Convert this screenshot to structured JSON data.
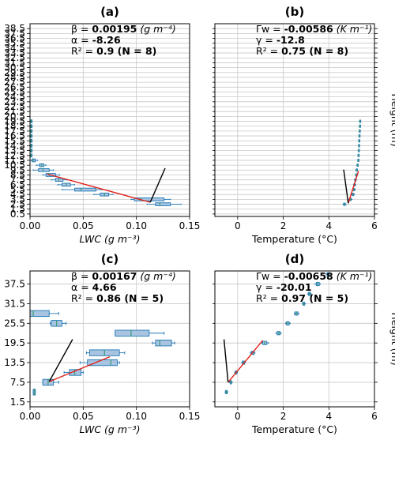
{
  "chart_data": [
    {
      "id": "a",
      "type": "box",
      "title": "(a)",
      "xlabel": "LWC (g m⁻³)",
      "ylabel": "",
      "xlim": [
        0,
        0.15
      ],
      "ylim": [
        0,
        39.5
      ],
      "xticks": [
        0.0,
        0.05,
        0.1,
        0.15
      ],
      "xtick_labels": [
        "0.00",
        "0.05",
        "0.10",
        "0.15"
      ],
      "yticks": [
        0.5,
        1.5,
        2.5,
        3.5,
        4.5,
        5.5,
        6.5,
        7.5,
        8.5,
        9.5,
        10.5,
        11.5,
        12.5,
        13.5,
        14.5,
        15.5,
        16.5,
        17.5,
        18.5,
        19.5,
        20.5,
        21.5,
        22.5,
        23.5,
        24.5,
        25.5,
        26.5,
        27.5,
        28.5,
        29.5,
        30.5,
        31.5,
        32.5,
        33.5,
        34.5,
        35.5,
        36.5,
        37.5,
        38.5
      ],
      "ytick_labels": [
        "0.5",
        "1.5",
        "2.5",
        "3.5",
        "4.5",
        "5.5",
        "6.5",
        "7.5",
        "8.5",
        "9.5",
        "10.5",
        "11.5",
        "12.5",
        "13.5",
        "14.5",
        "15.5",
        "16.5",
        "17.5",
        "18.5",
        "19.5",
        "20.5",
        "21.5",
        "22.5",
        "23.5",
        "24.5",
        "25.5",
        "26.5",
        "27.5",
        "28.5",
        "29.5",
        "30.5",
        "31.5",
        "32.5",
        "33.5",
        "34.5",
        "35.5",
        "36.5",
        "37.5",
        "38.5"
      ],
      "ytick_side": "left",
      "grid": true,
      "box_height": 0.6,
      "boxes": [
        {
          "y": 2.5,
          "wl": 0.11,
          "q1": 0.118,
          "med": 0.122,
          "q3": 0.132,
          "wh": 0.142
        },
        {
          "y": 3.5,
          "wl": 0.095,
          "q1": 0.098,
          "med": 0.104,
          "q3": 0.126,
          "wh": 0.132
        },
        {
          "y": 4.5,
          "wl": 0.06,
          "q1": 0.066,
          "med": 0.07,
          "q3": 0.074,
          "wh": 0.078
        },
        {
          "y": 5.5,
          "wl": 0.03,
          "q1": 0.042,
          "med": 0.048,
          "q3": 0.062,
          "wh": 0.068
        },
        {
          "y": 6.5,
          "wl": 0.026,
          "q1": 0.03,
          "med": 0.034,
          "q3": 0.038,
          "wh": 0.042
        },
        {
          "y": 7.5,
          "wl": 0.02,
          "q1": 0.024,
          "med": 0.027,
          "q3": 0.031,
          "wh": 0.035
        },
        {
          "y": 8.5,
          "wl": 0.012,
          "q1": 0.015,
          "med": 0.018,
          "q3": 0.024,
          "wh": 0.028
        },
        {
          "y": 9.5,
          "wl": 0.003,
          "q1": 0.008,
          "med": 0.012,
          "q3": 0.018,
          "wh": 0.022
        },
        {
          "y": 10.5,
          "wl": 0.006,
          "q1": 0.009,
          "med": 0.011,
          "q3": 0.013,
          "wh": 0.015
        },
        {
          "y": 11.5,
          "wl": 0.001,
          "q1": 0.002,
          "med": 0.003,
          "q3": 0.005,
          "wh": 0.007
        },
        {
          "y": 12.5,
          "wl": 0.0005,
          "q1": 0.0008,
          "med": 0.001,
          "q3": 0.0015,
          "wh": 0.002
        },
        {
          "y": 13.5,
          "wl": 0.0005,
          "q1": 0.0008,
          "med": 0.001,
          "q3": 0.0015,
          "wh": 0.002
        },
        {
          "y": 14.5,
          "wl": 0.0005,
          "q1": 0.0008,
          "med": 0.001,
          "q3": 0.0015,
          "wh": 0.002
        },
        {
          "y": 15.5,
          "wl": 0.0005,
          "q1": 0.0008,
          "med": 0.001,
          "q3": 0.0015,
          "wh": 0.002
        },
        {
          "y": 16.5,
          "wl": 0.0005,
          "q1": 0.0008,
          "med": 0.001,
          "q3": 0.0015,
          "wh": 0.002
        },
        {
          "y": 17.5,
          "wl": 0.0005,
          "q1": 0.0008,
          "med": 0.001,
          "q3": 0.0015,
          "wh": 0.002
        },
        {
          "y": 18.5,
          "wl": 0.0005,
          "q1": 0.0008,
          "med": 0.001,
          "q3": 0.0015,
          "wh": 0.002
        },
        {
          "y": 19.5,
          "wl": 0.0005,
          "q1": 0.0008,
          "med": 0.001,
          "q3": 0.0015,
          "wh": 0.002
        }
      ],
      "fit_line": [
        [
          0.016,
          8.7
        ],
        [
          0.113,
          2.9
        ]
      ],
      "ref_line": [
        [
          0.113,
          2.9
        ],
        [
          0.127,
          9.9
        ]
      ],
      "annotations": [
        {
          "prefix": "β = ",
          "value": "0.00195",
          "unit": " (g m⁻⁴)"
        },
        {
          "prefix": "α = ",
          "value": "-8.26",
          "unit": ""
        },
        {
          "prefix": "R² = ",
          "value": "0.9 (N = 8)",
          "unit": ""
        }
      ]
    },
    {
      "id": "b",
      "type": "box",
      "title": "(b)",
      "xlabel": "Temperature (°C)",
      "ylabel": "Height (m)",
      "xlim": [
        -1,
        6
      ],
      "ylim": [
        0,
        39.5
      ],
      "xticks": [
        0,
        2,
        4,
        6
      ],
      "xtick_labels": [
        "0",
        "2",
        "4",
        "6"
      ],
      "yticks": [
        0.5,
        1.5,
        2.5,
        3.5,
        4.5,
        5.5,
        6.5,
        7.5,
        8.5,
        9.5,
        10.5,
        11.5,
        12.5,
        13.5,
        14.5,
        15.5,
        16.5,
        17.5,
        18.5,
        19.5,
        20.5,
        21.5,
        22.5,
        23.5,
        24.5,
        25.5,
        26.5,
        27.5,
        28.5,
        29.5,
        30.5,
        31.5,
        32.5,
        33.5,
        34.5,
        35.5,
        36.5,
        37.5,
        38.5
      ],
      "ytick_labels": [],
      "ytick_side": "right",
      "grid": true,
      "box_height": 0.5,
      "boxes": [
        {
          "y": 2.5,
          "wl": 4.62,
          "q1": 4.65,
          "med": 4.68,
          "q3": 4.72,
          "wh": 4.76
        },
        {
          "y": 3.5,
          "wl": 4.88,
          "q1": 4.92,
          "med": 4.95,
          "q3": 4.98,
          "wh": 5.02
        },
        {
          "y": 4.5,
          "wl": 5.0,
          "q1": 5.03,
          "med": 5.06,
          "q3": 5.09,
          "wh": 5.12
        },
        {
          "y": 5.5,
          "wl": 5.05,
          "q1": 5.08,
          "med": 5.1,
          "q3": 5.13,
          "wh": 5.16
        },
        {
          "y": 6.5,
          "wl": 5.08,
          "q1": 5.1,
          "med": 5.12,
          "q3": 5.15,
          "wh": 5.18
        },
        {
          "y": 7.5,
          "wl": 5.12,
          "q1": 5.14,
          "med": 5.16,
          "q3": 5.18,
          "wh": 5.21
        },
        {
          "y": 8.5,
          "wl": 5.16,
          "q1": 5.18,
          "med": 5.2,
          "q3": 5.22,
          "wh": 5.24
        },
        {
          "y": 9.5,
          "wl": 5.18,
          "q1": 5.2,
          "med": 5.22,
          "q3": 5.24,
          "wh": 5.26
        },
        {
          "y": 10.5,
          "wl": 5.22,
          "q1": 5.24,
          "med": 5.25,
          "q3": 5.27,
          "wh": 5.29
        },
        {
          "y": 11.5,
          "wl": 5.26,
          "q1": 5.27,
          "med": 5.28,
          "q3": 5.29,
          "wh": 5.31
        },
        {
          "y": 12.5,
          "wl": 5.27,
          "q1": 5.28,
          "med": 5.29,
          "q3": 5.3,
          "wh": 5.32
        },
        {
          "y": 13.5,
          "wl": 5.28,
          "q1": 5.29,
          "med": 5.3,
          "q3": 5.31,
          "wh": 5.33
        },
        {
          "y": 14.5,
          "wl": 5.29,
          "q1": 5.3,
          "med": 5.31,
          "q3": 5.32,
          "wh": 5.34
        },
        {
          "y": 15.5,
          "wl": 5.3,
          "q1": 5.31,
          "med": 5.32,
          "q3": 5.33,
          "wh": 5.35
        },
        {
          "y": 16.5,
          "wl": 5.31,
          "q1": 5.32,
          "med": 5.33,
          "q3": 5.34,
          "wh": 5.36
        },
        {
          "y": 17.5,
          "wl": 5.32,
          "q1": 5.33,
          "med": 5.34,
          "q3": 5.35,
          "wh": 5.37
        },
        {
          "y": 18.5,
          "wl": 5.33,
          "q1": 5.34,
          "med": 5.35,
          "q3": 5.36,
          "wh": 5.38
        },
        {
          "y": 19.5,
          "wl": 5.34,
          "q1": 5.35,
          "med": 5.36,
          "q3": 5.37,
          "wh": 5.39
        }
      ],
      "fit_line": [
        [
          4.85,
          2.7
        ],
        [
          5.3,
          9.3
        ]
      ],
      "ref_line": [
        [
          4.85,
          2.7
        ],
        [
          4.65,
          9.6
        ]
      ],
      "annotations": [
        {
          "prefix": "Γw = ",
          "value": "-0.00586",
          "unit": " (K m⁻¹)"
        },
        {
          "prefix": "γ = ",
          "value": "-12.8",
          "unit": ""
        },
        {
          "prefix": "R² = ",
          "value": "0.75 (N = 8)",
          "unit": ""
        }
      ]
    },
    {
      "id": "c",
      "type": "box",
      "title": "(c)",
      "xlabel": "LWC (g m⁻³)",
      "ylabel": "",
      "xlim": [
        0,
        0.15
      ],
      "ylim": [
        0,
        41.5
      ],
      "xticks": [
        0.0,
        0.05,
        0.1,
        0.15
      ],
      "xtick_labels": [
        "0.00",
        "0.05",
        "0.10",
        "0.15"
      ],
      "yticks": [
        1.5,
        7.5,
        13.5,
        19.5,
        25.5,
        31.5,
        37.5
      ],
      "ytick_labels": [
        "1.5",
        "7.5",
        "13.5",
        "19.5",
        "25.5",
        "31.5",
        "37.5"
      ],
      "ytick_side": "left",
      "grid": true,
      "box_height": 1.8,
      "boxes": [
        {
          "y": 4.5,
          "wl": 0.003,
          "q1": 0.003,
          "med": 0.004,
          "q3": 0.005,
          "wh": 0.005
        },
        {
          "y": 7.5,
          "wl": 0.012,
          "q1": 0.012,
          "med": 0.017,
          "q3": 0.022,
          "wh": 0.027
        },
        {
          "y": 10.5,
          "wl": 0.032,
          "q1": 0.037,
          "med": 0.042,
          "q3": 0.048,
          "wh": 0.05
        },
        {
          "y": 13.5,
          "wl": 0.047,
          "q1": 0.054,
          "med": 0.076,
          "q3": 0.082,
          "wh": 0.084
        },
        {
          "y": 16.5,
          "wl": 0.053,
          "q1": 0.056,
          "med": 0.07,
          "q3": 0.084,
          "wh": 0.089
        },
        {
          "y": 19.5,
          "wl": 0.115,
          "q1": 0.118,
          "med": 0.122,
          "q3": 0.133,
          "wh": 0.136
        },
        {
          "y": 22.5,
          "wl": 0.08,
          "q1": 0.08,
          "med": 0.095,
          "q3": 0.112,
          "wh": 0.126
        },
        {
          "y": 25.5,
          "wl": 0.019,
          "q1": 0.02,
          "med": 0.025,
          "q3": 0.03,
          "wh": 0.034
        },
        {
          "y": 28.5,
          "wl": 0.0,
          "q1": 0.0,
          "med": 0.003,
          "q3": 0.018,
          "wh": 0.027
        }
      ],
      "fit_line": [
        [
          0.018,
          7.7
        ],
        [
          0.075,
          15.3
        ]
      ],
      "ref_line": [
        [
          0.018,
          7.7
        ],
        [
          0.04,
          20.6
        ]
      ],
      "annotations": [
        {
          "prefix": "β = ",
          "value": "0.00167",
          "unit": " (g m⁻⁴)"
        },
        {
          "prefix": "α = ",
          "value": "4.66",
          "unit": ""
        },
        {
          "prefix": "R² = ",
          "value": "0.86 (N = 5)",
          "unit": ""
        }
      ]
    },
    {
      "id": "d",
      "type": "box",
      "title": "(d)",
      "xlabel": "Temperature (°C)",
      "ylabel": "Height (m)",
      "xlim": [
        -1,
        6
      ],
      "ylim": [
        0,
        41.5
      ],
      "xticks": [
        0,
        2,
        4,
        6
      ],
      "xtick_labels": [
        "0",
        "2",
        "4",
        "6"
      ],
      "yticks": [
        1.5,
        7.5,
        13.5,
        19.5,
        25.5,
        31.5,
        37.5
      ],
      "ytick_labels": [],
      "ytick_side": "right",
      "grid": true,
      "box_height": 1.0,
      "boxes": [
        {
          "y": 4.5,
          "wl": -0.55,
          "q1": -0.53,
          "med": -0.5,
          "q3": -0.46,
          "wh": -0.44
        },
        {
          "y": 7.5,
          "wl": -0.36,
          "q1": -0.33,
          "med": -0.3,
          "q3": -0.27,
          "wh": -0.24
        },
        {
          "y": 10.5,
          "wl": -0.13,
          "q1": -0.1,
          "med": -0.07,
          "q3": -0.04,
          "wh": -0.01
        },
        {
          "y": 13.5,
          "wl": 0.18,
          "q1": 0.21,
          "med": 0.25,
          "q3": 0.3,
          "wh": 0.33
        },
        {
          "y": 16.5,
          "wl": 0.55,
          "q1": 0.6,
          "med": 0.66,
          "q3": 0.72,
          "wh": 0.76
        },
        {
          "y": 19.5,
          "wl": 1.05,
          "q1": 1.1,
          "med": 1.18,
          "q3": 1.28,
          "wh": 1.35
        },
        {
          "y": 22.5,
          "wl": 1.68,
          "q1": 1.73,
          "med": 1.8,
          "q3": 1.86,
          "wh": 1.91
        },
        {
          "y": 25.5,
          "wl": 2.1,
          "q1": 2.14,
          "med": 2.2,
          "q3": 2.26,
          "wh": 2.3
        },
        {
          "y": 28.5,
          "wl": 2.48,
          "q1": 2.52,
          "med": 2.58,
          "q3": 2.64,
          "wh": 2.68
        },
        {
          "y": 31.5,
          "wl": 2.84,
          "q1": 2.87,
          "med": 2.9,
          "q3": 2.93,
          "wh": 2.96
        },
        {
          "y": 34.5,
          "wl": 3.08,
          "q1": 3.11,
          "med": 3.15,
          "q3": 3.19,
          "wh": 3.22
        },
        {
          "y": 37.5,
          "wl": 3.4,
          "q1": 3.45,
          "med": 3.52,
          "q3": 3.58,
          "wh": 3.62
        },
        {
          "y": 40.5,
          "wl": 3.88,
          "q1": 3.92,
          "med": 3.96,
          "q3": 4.0,
          "wh": 4.03
        }
      ],
      "fit_line": [
        [
          -0.42,
          7.5
        ],
        [
          1.1,
          20.3
        ]
      ],
      "ref_line": [
        [
          -0.42,
          7.5
        ],
        [
          -0.6,
          20.6
        ]
      ],
      "annotations": [
        {
          "prefix": "Γw = ",
          "value": "-0.00658",
          "unit": " (K m⁻¹)"
        },
        {
          "prefix": "γ = ",
          "value": "-20.01",
          "unit": ""
        },
        {
          "prefix": "R² = ",
          "value": "0.97 (N = 5)",
          "unit": ""
        }
      ]
    }
  ],
  "colors": {
    "box_edge": "#1f77b4",
    "box_fill": "#a8c4e0",
    "median": "#3a9a7a",
    "fit_line": "#e0211a",
    "ref_line": "#000000",
    "grid": "#c8c8c8"
  }
}
